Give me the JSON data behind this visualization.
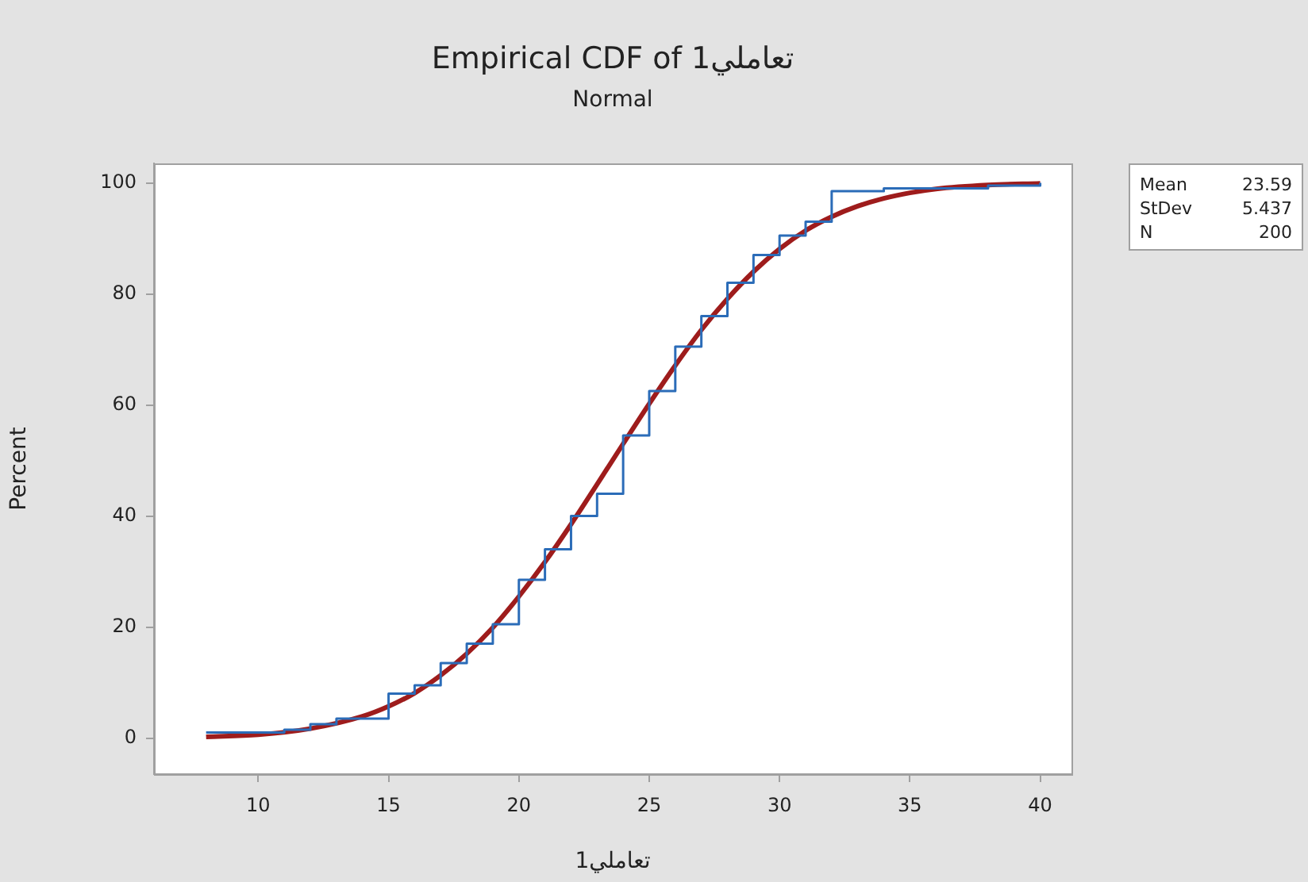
{
  "chart_data": {
    "type": "step",
    "title": "Empirical CDF of تعاملي1",
    "subtitle": "Normal",
    "xlabel": "تعاملي1",
    "ylabel": "Percent",
    "xlim": [
      6,
      41.2
    ],
    "xticks": [
      10,
      15,
      20,
      25,
      30,
      35,
      40
    ],
    "ylim": [
      -6.5,
      103.5
    ],
    "yticks": [
      0,
      20,
      40,
      60,
      80,
      100
    ],
    "grid": false,
    "legend": false,
    "marker": "none",
    "annotations": [
      "Mean",
      "23.59",
      "StDev",
      "5.437",
      "N",
      "200"
    ],
    "series": [
      {
        "type": "step",
        "color": "#2b6cb8",
        "x": [
          8,
          11,
          12,
          13,
          15,
          16,
          17,
          18,
          19,
          20,
          21,
          22,
          23,
          24,
          25,
          26,
          27,
          28,
          29,
          30,
          31,
          32,
          34,
          38,
          40
        ],
        "values": [
          1,
          1.5,
          2.5,
          3.5,
          8,
          9.5,
          13.5,
          17,
          20.5,
          28.5,
          34,
          40,
          44,
          54.5,
          62.5,
          70.5,
          76,
          82,
          87,
          90.5,
          93,
          98.5,
          99,
          99.5,
          100
        ]
      },
      {
        "type": "line",
        "color": "#9e1c1c",
        "x": [
          8,
          10,
          12,
          14,
          15,
          16,
          17,
          18,
          19,
          20,
          21,
          22,
          23,
          24,
          25,
          26,
          27,
          28,
          29,
          30,
          31,
          32,
          33,
          34,
          35,
          36,
          38,
          40
        ],
        "values": [
          0.2,
          0.6,
          1.7,
          3.9,
          5.7,
          8.1,
          11.3,
          15.2,
          19.9,
          25.5,
          31.7,
          38.5,
          45.7,
          53,
          60.2,
          67.1,
          73.5,
          79.1,
          84,
          88.1,
          91.4,
          93.9,
          95.8,
          97.2,
          98.2,
          98.9,
          99.6,
          99.9
        ]
      }
    ]
  }
}
